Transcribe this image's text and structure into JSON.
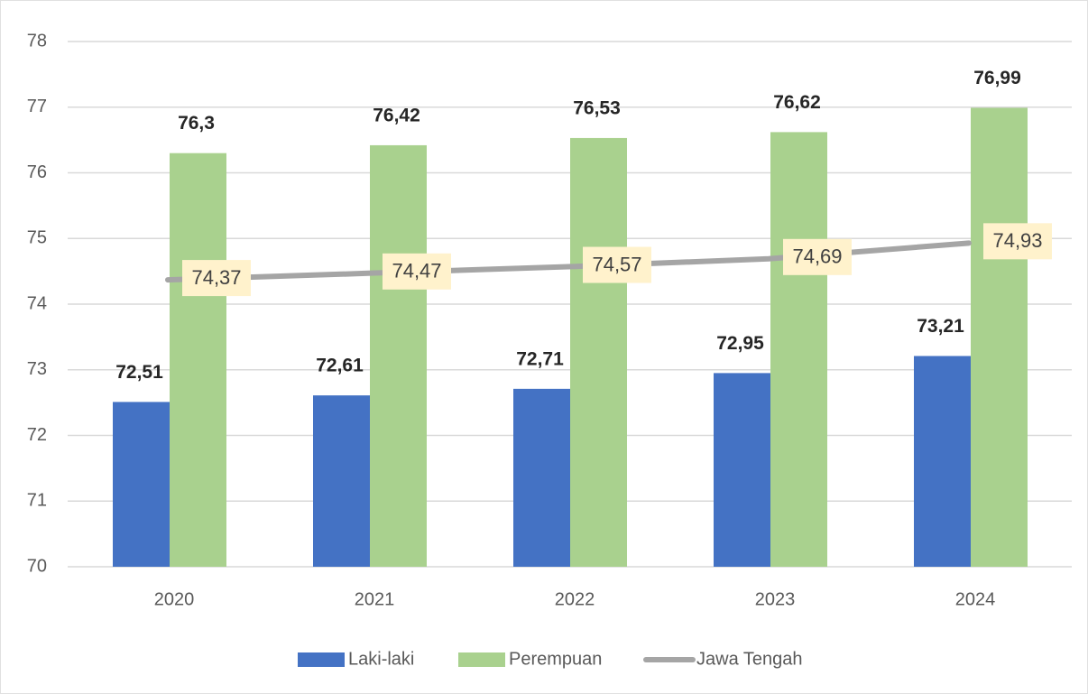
{
  "chart_data": {
    "type": "bar",
    "categories": [
      "2020",
      "2021",
      "2022",
      "2023",
      "2024"
    ],
    "series": [
      {
        "name": "Laki-laki",
        "type": "bar",
        "color": "#4472c4",
        "values": [
          72.51,
          72.61,
          72.71,
          72.95,
          73.21
        ],
        "value_labels": [
          "72,51",
          "72,61",
          "72,71",
          "72,95",
          "73,21"
        ]
      },
      {
        "name": "Perempuan",
        "type": "bar",
        "color": "#a9d18e",
        "values": [
          76.3,
          76.42,
          76.53,
          76.62,
          76.99
        ],
        "value_labels": [
          "76,3",
          "76,42",
          "76,53",
          "76,62",
          "76,99"
        ]
      },
      {
        "name": "Jawa Tengah",
        "type": "line",
        "color": "#a5a5a5",
        "values": [
          74.37,
          74.47,
          74.57,
          74.69,
          74.93
        ],
        "value_labels": [
          "74,37",
          "74,47",
          "74,57",
          "74,69",
          "74,93"
        ]
      }
    ],
    "ylim": [
      70,
      78
    ],
    "yticks": [
      70,
      71,
      72,
      73,
      74,
      75,
      76,
      77,
      78
    ],
    "grid": true,
    "legend": "bottom"
  }
}
